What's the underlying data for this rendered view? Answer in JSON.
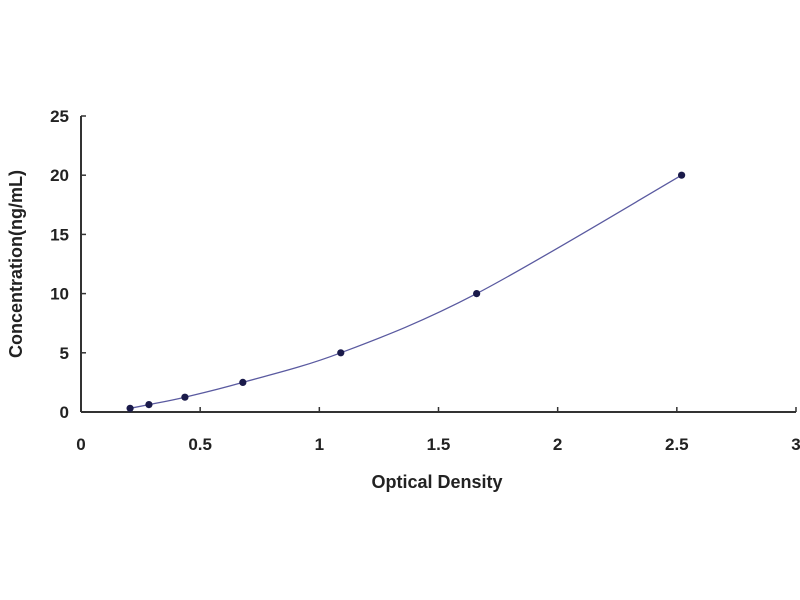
{
  "chart_data": {
    "type": "scatter",
    "title": "",
    "xlabel": "Optical Density",
    "ylabel": "Concentration(ng/mL)",
    "xlim": [
      0,
      3
    ],
    "ylim": [
      0,
      25
    ],
    "xticks": [
      "0",
      "0.5",
      "1",
      "1.5",
      "2",
      "2.5",
      "3"
    ],
    "yticks": [
      "0",
      "5",
      "10",
      "15",
      "20",
      "25"
    ],
    "grid": false,
    "legend": "none",
    "series": [
      {
        "x": [
          0.206,
          0.285,
          0.436,
          0.679,
          1.09,
          1.66,
          2.52
        ],
        "y": [
          0.3125,
          0.625,
          1.25,
          2.5,
          5,
          10,
          20
        ],
        "marker_color": "#1a1a4a",
        "line_color": "#5a5aa0",
        "fit_line": true
      }
    ]
  }
}
